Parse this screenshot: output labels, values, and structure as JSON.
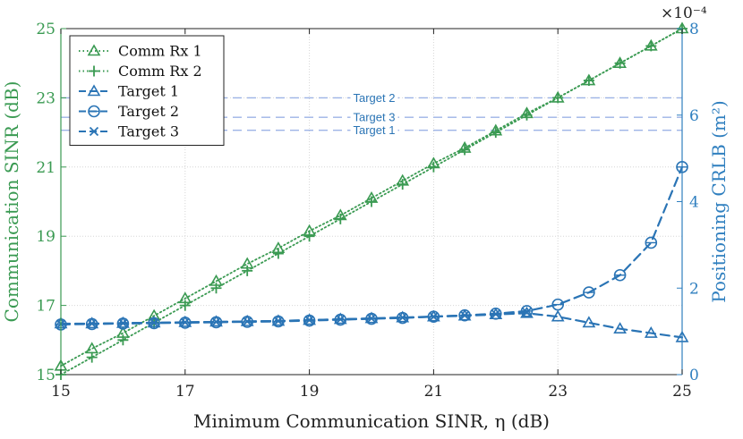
{
  "chart_data": {
    "type": "line",
    "xlabel": "Minimum Communication SINR, η (dB)",
    "ylabel_left": "Communication SINR (dB)",
    "ylabel_right": "Positioning CRLB (m²)",
    "right_axis_multiplier": "×10⁻⁴",
    "xlim": [
      15,
      25
    ],
    "ylim_left": [
      15,
      25
    ],
    "ylim_right": [
      0,
      8
    ],
    "xticks": [
      "15",
      "17",
      "19",
      "21",
      "23",
      "25"
    ],
    "yticks_left": [
      "15",
      "17",
      "19",
      "21",
      "23",
      "25"
    ],
    "yticks_right": [
      "0",
      "2",
      "4",
      "6",
      "8"
    ],
    "grid": true,
    "legend_position": "top-left",
    "series": [
      {
        "name": "Comm Rx 1",
        "axis": "left",
        "style": "dotted",
        "marker": "triangle",
        "color": "#3a9a52",
        "x": [
          15,
          15.5,
          16,
          16.5,
          17,
          17.5,
          18,
          18.5,
          19,
          19.5,
          20,
          20.5,
          21,
          21.5,
          22,
          22.5,
          23,
          23.5,
          24,
          24.5,
          25
        ],
        "y": [
          15.25,
          15.75,
          16.2,
          16.7,
          17.2,
          17.7,
          18.2,
          18.65,
          19.15,
          19.6,
          20.1,
          20.6,
          21.1,
          21.55,
          22.05,
          22.55,
          23.0,
          23.5,
          24.0,
          24.5,
          25.0
        ]
      },
      {
        "name": "Comm Rx 2",
        "axis": "left",
        "style": "dotted",
        "marker": "plus",
        "color": "#3a9a52",
        "x": [
          15,
          15.5,
          16,
          16.5,
          17,
          17.5,
          18,
          18.5,
          19,
          19.5,
          20,
          20.5,
          21,
          21.5,
          22,
          22.5,
          23,
          23.5,
          24,
          24.5,
          25
        ],
        "y": [
          15.0,
          15.5,
          16.0,
          16.5,
          17.0,
          17.5,
          18.0,
          18.5,
          19.0,
          19.5,
          20.0,
          20.5,
          21.0,
          21.5,
          22.0,
          22.5,
          23.0,
          23.5,
          24.0,
          24.5,
          25.0
        ]
      },
      {
        "name": "Target 1",
        "axis": "right",
        "style": "dashed",
        "marker": "triangle",
        "color": "#2a74b5",
        "x": [
          15,
          15.5,
          16,
          16.5,
          17,
          17.5,
          18,
          18.5,
          19,
          19.5,
          20,
          20.5,
          21,
          21.5,
          22,
          22.5,
          23,
          23.5,
          24,
          24.5,
          25
        ],
        "y": [
          1.18,
          1.18,
          1.19,
          1.2,
          1.21,
          1.22,
          1.23,
          1.24,
          1.26,
          1.28,
          1.3,
          1.32,
          1.34,
          1.36,
          1.39,
          1.42,
          1.34,
          1.2,
          1.06,
          0.96,
          0.86
        ]
      },
      {
        "name": "Target 2",
        "axis": "right",
        "style": "dashed",
        "marker": "circle",
        "color": "#2a74b5",
        "x": [
          15,
          15.5,
          16,
          16.5,
          17,
          17.5,
          18,
          18.5,
          19,
          19.5,
          20,
          20.5,
          21,
          21.5,
          22,
          22.5,
          23,
          23.5,
          24,
          24.5,
          25
        ],
        "y": [
          1.16,
          1.17,
          1.18,
          1.19,
          1.2,
          1.21,
          1.22,
          1.23,
          1.25,
          1.27,
          1.29,
          1.31,
          1.34,
          1.37,
          1.41,
          1.47,
          1.62,
          1.9,
          2.3,
          3.05,
          4.8
        ]
      },
      {
        "name": "Target 3",
        "axis": "right",
        "style": "dashed",
        "marker": "x",
        "color": "#2a74b5",
        "x": [
          15,
          15.5,
          16,
          16.5,
          17,
          17.5,
          18,
          18.5,
          19,
          19.5,
          20,
          20.5,
          21,
          21.5,
          22,
          22.5
        ],
        "y": [
          1.17,
          1.18,
          1.19,
          1.2,
          1.21,
          1.22,
          1.23,
          1.24,
          1.26,
          1.28,
          1.3,
          1.32,
          1.34,
          1.37,
          1.4,
          1.44
        ]
      }
    ],
    "reference_lines": [
      {
        "label": "Target 2",
        "axis": "right",
        "y": 6.4,
        "color": "#9db3e6"
      },
      {
        "label": "Target 3",
        "axis": "right",
        "y": 5.95,
        "color": "#9db3e6"
      },
      {
        "label": "Target 1",
        "axis": "right",
        "y": 5.65,
        "color": "#9db3e6"
      }
    ]
  }
}
